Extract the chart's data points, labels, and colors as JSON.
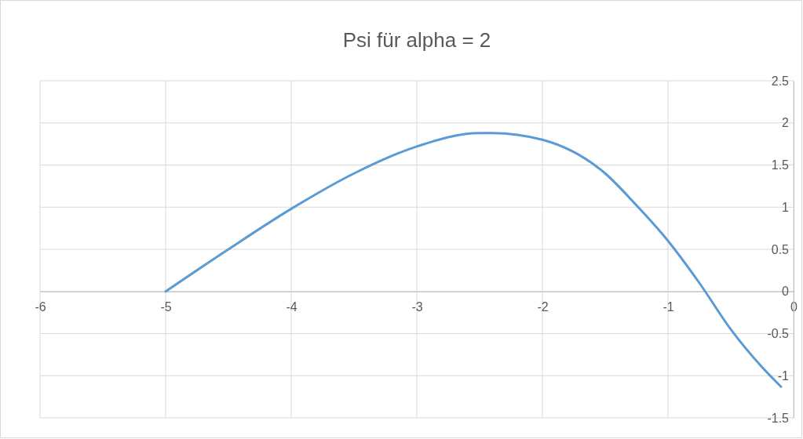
{
  "chart_data": {
    "type": "line",
    "title": "Psi für alpha = 2",
    "series": [
      {
        "color": "#5b9bd5",
        "x": [
          -5,
          -4.5,
          -4,
          -3.5,
          -3,
          -2.5,
          -2.4,
          -2,
          -1.5,
          -1.25,
          -1,
          -0.75,
          -0.5,
          -0.25,
          -0.1
        ],
        "values": [
          0,
          0.5,
          0.98,
          1.4,
          1.72,
          1.88,
          1.88,
          1.8,
          1.4,
          1.02,
          0.6,
          0.1,
          -0.45,
          -0.9,
          -1.13
        ]
      }
    ],
    "xlim": [
      -6,
      0
    ],
    "xticks": [
      -6,
      -5,
      -4,
      -3,
      -2,
      -1,
      0
    ],
    "ylim": [
      -1.5,
      2.5
    ],
    "yticks": [
      -1.5,
      -1,
      -0.5,
      0,
      0.5,
      1,
      1.5,
      2,
      2.5
    ],
    "grid": true,
    "marker": "none",
    "line_style": "solid"
  }
}
